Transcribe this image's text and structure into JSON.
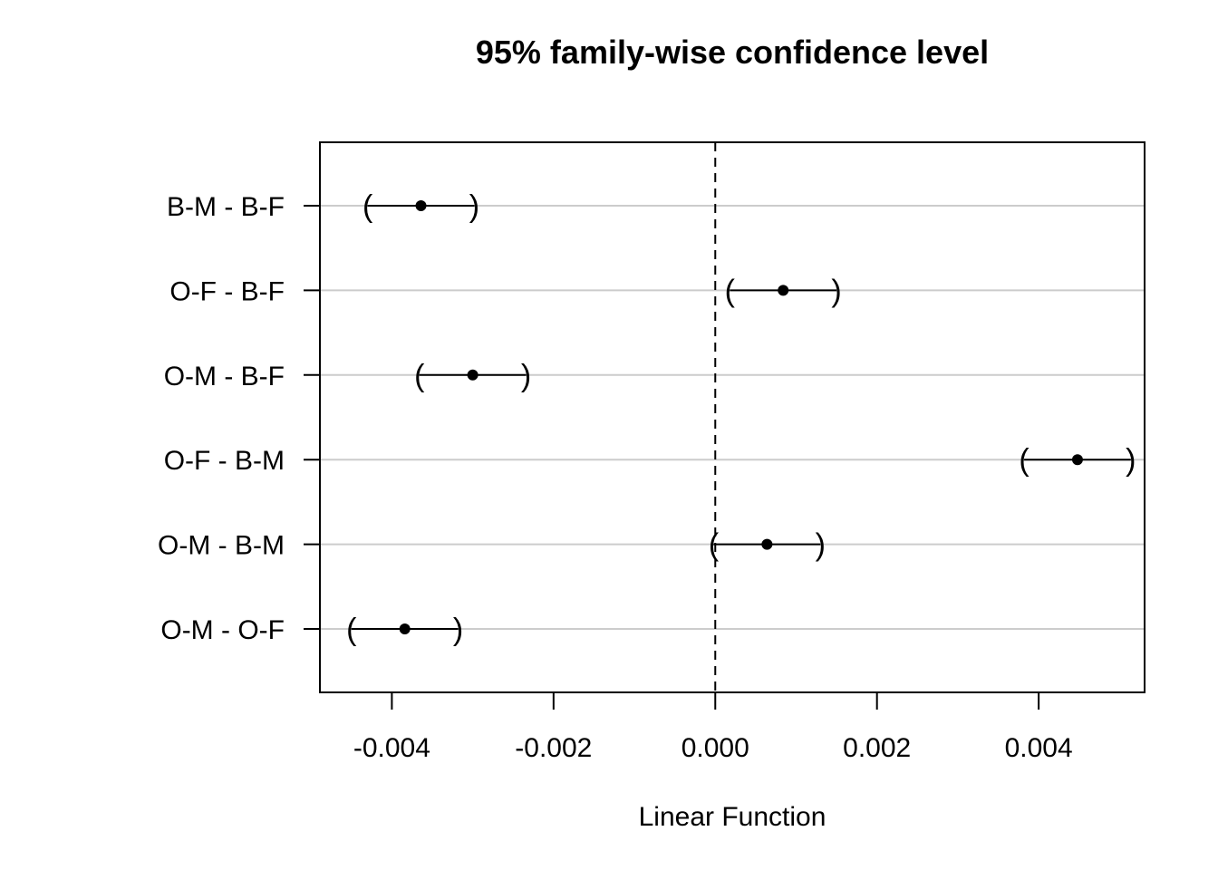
{
  "chart_data": {
    "type": "scatter",
    "title": "95% family-wise confidence level",
    "xlabel": "Linear Function",
    "ylabel": "",
    "xlim": [
      -0.00489,
      0.00531
    ],
    "x_ticks": [
      -0.004,
      -0.002,
      0.0,
      0.002,
      0.004
    ],
    "x_tick_labels": [
      "-0.004",
      "-0.002",
      "0.000",
      "0.002",
      "0.004"
    ],
    "reference_line": 0.0,
    "grid": "horizontal",
    "categories": [
      "B-M - B-F",
      "O-F - B-F",
      "O-M - B-F",
      "O-F - B-M",
      "O-M - B-M",
      "O-M - O-F"
    ],
    "estimates": [
      -0.00364,
      0.00084,
      -0.003,
      0.00448,
      0.00064,
      -0.00384
    ],
    "lower": [
      -0.0043,
      0.00018,
      -0.00366,
      0.00382,
      -2e-05,
      -0.0045
    ],
    "upper": [
      -0.00298,
      0.0015,
      -0.00234,
      0.00514,
      0.0013,
      -0.00318
    ]
  }
}
